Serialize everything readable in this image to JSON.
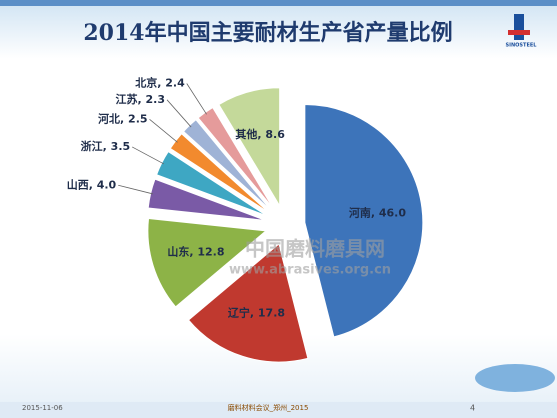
{
  "chart_data": {
    "type": "pie",
    "title": "2014年中国主要耐材生产省产量比例",
    "values": [
      46.0,
      17.8,
      12.8,
      4.0,
      3.5,
      2.5,
      2.3,
      2.4,
      8.6
    ],
    "value_labels": [
      "河南, 46.0",
      "辽宁, 17.8",
      "山东, 12.8",
      "山西, 4.0",
      "浙江, 3.5",
      "河北, 2.5",
      "江苏, 2.3",
      "北京, 2.4",
      "其他, 8.6"
    ],
    "colors": [
      "#3d74ba",
      "#c0392f",
      "#8db347",
      "#7a5aa6",
      "#3ea7c3",
      "#f28a2e",
      "#9fb3d6",
      "#e59b9b",
      "#c4d99a"
    ]
  },
  "logo": "SINOSTEEL",
  "watermark": {
    "title": "中国磨料磨具网",
    "url": "www.abrasives.org.cn"
  },
  "footer": {
    "date": "2015-11-06",
    "event": "磨料材料会议_郑州_2015",
    "page": "4"
  }
}
